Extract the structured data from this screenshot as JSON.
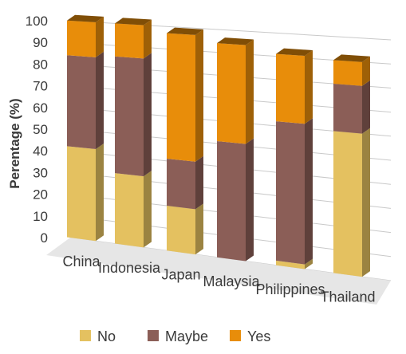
{
  "chart_data": {
    "type": "bar",
    "stacked": true,
    "three_d": true,
    "title": "",
    "xlabel": "",
    "ylabel": "Perentage (%)",
    "ylim": [
      0,
      100
    ],
    "yticks": [
      0,
      10,
      20,
      30,
      40,
      50,
      60,
      70,
      80,
      90,
      100
    ],
    "grid": true,
    "legend_position": "bottom",
    "categories": [
      "China",
      "Indonesia",
      "Japan",
      "Malaysia",
      "Philippines",
      "Thailand"
    ],
    "series": [
      {
        "name": "No",
        "color": "#e4c160",
        "values": [
          42,
          32,
          20,
          0,
          2,
          60
        ]
      },
      {
        "name": "Maybe",
        "color": "#8b5e57",
        "values": [
          42,
          53,
          21,
          51,
          60,
          20
        ]
      },
      {
        "name": "Yes",
        "color": "#e88d0a",
        "values": [
          16,
          15,
          56,
          43,
          29,
          10
        ]
      }
    ]
  }
}
